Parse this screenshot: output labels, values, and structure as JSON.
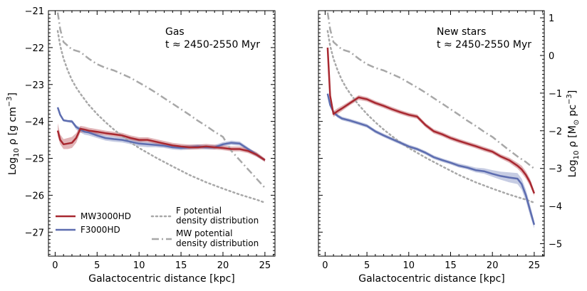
{
  "chart_data": {
    "type": "line",
    "shared_xlabel": "Galactocentric distance [kpc]",
    "left_ylabel": "Log$_{10}$ ρ [g cm$^{-3}$]",
    "right_ylabel": "Log$_{10}$ ρ [M$_\\odot$ pc$^{-3}$]",
    "xlim": [
      -0.8,
      26.2
    ],
    "ylim": [
      -27.65,
      -21
    ],
    "right_ylim": [
      -5.33,
      1.19
    ],
    "xticks": [
      0,
      5,
      10,
      15,
      20,
      25
    ],
    "left_yticks": [
      -27,
      -26,
      -25,
      -24,
      -23,
      -22,
      -21
    ],
    "right_yticks": [
      1,
      0,
      -1,
      -2,
      -3,
      -4,
      -5
    ],
    "xtick_labels": [
      "0",
      "5",
      "10",
      "15",
      "20",
      "25"
    ],
    "left_ytick_labels": [
      "−27",
      "−26",
      "−25",
      "−24",
      "−23",
      "−22",
      "−21"
    ],
    "right_ytick_labels": [
      "1",
      "0",
      "−1",
      "−2",
      "−3",
      "−4",
      "−5"
    ],
    "colors": {
      "MW3000HD": "#a82830",
      "F3000HD": "#5d6db0",
      "F potential": "#a8a8a8",
      "MW potential": "#a8a8a8"
    },
    "legend": {
      "location": "bottom-left of left panel",
      "entries": [
        {
          "label": "MW3000HD",
          "style": "solid",
          "series": "MW3000HD"
        },
        {
          "label": "F3000HD",
          "style": "solid",
          "series": "F3000HD"
        },
        {
          "label_lines": [
            "F potential",
            "density distribution"
          ],
          "style": "dotted",
          "series": "F potential"
        },
        {
          "label_lines": [
            "MW potential",
            "density distribution"
          ],
          "style": "dashdot",
          "series": "MW potential"
        }
      ]
    },
    "panels": [
      {
        "id": "gas",
        "annotation": [
          "Gas",
          "t ≈ 2450-2550 Myr"
        ],
        "series": [
          {
            "name": "MW potential",
            "style": "dashdot",
            "x": [
              0.3,
              0.6,
              1,
              1.5,
              2,
              3,
              4,
              5,
              6,
              7,
              8,
              9,
              10,
              11,
              12,
              13,
              14,
              15,
              16,
              17,
              18,
              19,
              20,
              21,
              22,
              23,
              24,
              25
            ],
            "y": [
              -21.05,
              -21.5,
              -21.85,
              -21.95,
              -22.05,
              -22.12,
              -22.3,
              -22.45,
              -22.55,
              -22.62,
              -22.72,
              -22.82,
              -22.95,
              -23.08,
              -23.22,
              -23.37,
              -23.52,
              -23.67,
              -23.82,
              -23.98,
              -24.12,
              -24.28,
              -24.42,
              -24.8,
              -25.05,
              -25.3,
              -25.55,
              -25.8
            ]
          },
          {
            "name": "F potential",
            "style": "dotted",
            "x": [
              0.3,
              0.6,
              1,
              1.5,
              2,
              2.5,
              3,
              4,
              5,
              6,
              7,
              8,
              9,
              10,
              12,
              14,
              16,
              18,
              20,
              22,
              24,
              25
            ],
            "y": [
              -21.55,
              -21.95,
              -22.3,
              -22.62,
              -22.88,
              -23.08,
              -23.25,
              -23.55,
              -23.8,
              -24.02,
              -24.22,
              -24.4,
              -24.57,
              -24.72,
              -24.98,
              -25.22,
              -25.45,
              -25.65,
              -25.82,
              -25.98,
              -26.12,
              -26.2
            ]
          },
          {
            "name": "F3000HD",
            "style": "solid",
            "x": [
              0.3,
              0.6,
              1,
              1.5,
              2,
              2.5,
              3,
              3.5,
              4,
              5,
              6,
              7,
              8,
              9,
              10,
              11,
              12,
              13,
              14,
              15,
              16,
              17,
              18,
              19,
              20,
              21,
              22,
              23,
              24,
              25
            ],
            "y": [
              -23.62,
              -23.82,
              -23.97,
              -23.99,
              -24.0,
              -24.15,
              -24.22,
              -24.28,
              -24.3,
              -24.38,
              -24.45,
              -24.48,
              -24.5,
              -24.55,
              -24.6,
              -24.62,
              -24.64,
              -24.66,
              -24.7,
              -24.72,
              -24.7,
              -24.68,
              -24.7,
              -24.7,
              -24.62,
              -24.58,
              -24.6,
              -24.75,
              -24.9,
              -25.05
            ],
            "band_lower": [
              -23.62,
              -23.85,
              -24.0,
              -24.02,
              -24.05,
              -24.22,
              -24.3,
              -24.36,
              -24.38,
              -24.45,
              -24.52,
              -24.55,
              -24.57,
              -24.62,
              -24.68,
              -24.7,
              -24.7,
              -24.72,
              -24.76,
              -24.78,
              -24.76,
              -24.74,
              -24.76,
              -24.76,
              -24.68,
              -24.64,
              -24.66,
              -24.8,
              -24.95,
              -25.08
            ],
            "band_upper": [
              -23.62,
              -23.8,
              -23.94,
              -23.96,
              -23.96,
              -24.1,
              -24.16,
              -24.22,
              -24.24,
              -24.31,
              -24.38,
              -24.41,
              -24.43,
              -24.48,
              -24.52,
              -24.55,
              -24.58,
              -24.6,
              -24.64,
              -24.66,
              -24.64,
              -24.62,
              -24.64,
              -24.64,
              -24.56,
              -24.52,
              -24.54,
              -24.7,
              -24.85,
              -25.02
            ]
          },
          {
            "name": "MW3000HD",
            "style": "solid",
            "x": [
              0.3,
              0.6,
              1,
              1.5,
              2,
              2.5,
              3,
              3.5,
              4,
              5,
              6,
              7,
              8,
              9,
              10,
              11,
              12,
              13,
              14,
              15,
              16,
              17,
              18,
              19,
              20,
              21,
              22,
              23,
              24,
              25
            ],
            "y": [
              -24.25,
              -24.5,
              -24.62,
              -24.6,
              -24.58,
              -24.45,
              -24.2,
              -24.22,
              -24.25,
              -24.28,
              -24.32,
              -24.35,
              -24.38,
              -24.45,
              -24.5,
              -24.5,
              -24.55,
              -24.6,
              -24.65,
              -24.68,
              -24.7,
              -24.7,
              -24.68,
              -24.7,
              -24.72,
              -24.75,
              -24.75,
              -24.8,
              -24.9,
              -25.05
            ],
            "band_lower": [
              -24.4,
              -24.62,
              -24.75,
              -24.75,
              -24.72,
              -24.58,
              -24.3,
              -24.3,
              -24.32,
              -24.35,
              -24.38,
              -24.41,
              -24.44,
              -24.51,
              -24.56,
              -24.56,
              -24.61,
              -24.66,
              -24.71,
              -24.74,
              -24.76,
              -24.76,
              -24.74,
              -24.76,
              -24.78,
              -24.81,
              -24.81,
              -24.86,
              -24.96,
              -25.1
            ],
            "band_upper": [
              -24.05,
              -24.35,
              -24.48,
              -24.45,
              -24.42,
              -24.32,
              -24.12,
              -24.14,
              -24.17,
              -24.21,
              -24.25,
              -24.28,
              -24.31,
              -24.38,
              -24.43,
              -24.43,
              -24.48,
              -24.53,
              -24.58,
              -24.61,
              -24.63,
              -24.63,
              -24.61,
              -24.63,
              -24.65,
              -24.68,
              -24.68,
              -24.73,
              -24.83,
              -25.0
            ]
          }
        ]
      },
      {
        "id": "new-stars",
        "annotation": [
          "New stars",
          "t ≈ 2450-2550 Myr"
        ],
        "series": [
          {
            "name": "MW potential",
            "style": "dashdot",
            "x": [
              0.3,
              0.6,
              1,
              1.5,
              2,
              3,
              4,
              5,
              6,
              7,
              8,
              9,
              10,
              11,
              12,
              13,
              14,
              15,
              16,
              17,
              18,
              19,
              20,
              21,
              22,
              23,
              24,
              25
            ],
            "y": [
              -21.05,
              -21.5,
              -21.85,
              -21.95,
              -22.05,
              -22.12,
              -22.3,
              -22.45,
              -22.55,
              -22.62,
              -22.72,
              -22.82,
              -22.95,
              -23.08,
              -23.22,
              -23.37,
              -23.52,
              -23.67,
              -23.82,
              -23.98,
              -24.12,
              -24.28,
              -24.42,
              -24.6,
              -24.78,
              -24.95,
              -25.1,
              -25.28
            ]
          },
          {
            "name": "F potential",
            "style": "dotted",
            "x": [
              0.3,
              0.6,
              1,
              1.5,
              2,
              2.5,
              3,
              4,
              5,
              6,
              7,
              8,
              9,
              10,
              12,
              14,
              16,
              18,
              20,
              22,
              24,
              25
            ],
            "y": [
              -21.55,
              -21.95,
              -22.3,
              -22.62,
              -22.88,
              -23.08,
              -23.25,
              -23.55,
              -23.8,
              -24.02,
              -24.22,
              -24.4,
              -24.57,
              -24.72,
              -24.98,
              -25.22,
              -25.45,
              -25.65,
              -25.82,
              -25.98,
              -26.12,
              -26.2
            ]
          },
          {
            "name": "F3000HD",
            "style": "solid",
            "x": [
              0.3,
              0.6,
              1,
              1.5,
              2,
              3,
              4,
              5,
              6,
              7,
              8,
              9,
              10,
              11,
              12,
              13,
              14,
              15,
              16,
              17,
              18,
              19,
              20,
              21,
              22,
              23,
              23.5,
              24,
              24.5,
              25
            ],
            "y": [
              -23.25,
              -23.55,
              -23.75,
              -23.85,
              -23.92,
              -23.98,
              -24.05,
              -24.12,
              -24.27,
              -24.38,
              -24.48,
              -24.58,
              -24.68,
              -24.75,
              -24.85,
              -24.97,
              -25.05,
              -25.12,
              -25.2,
              -25.25,
              -25.32,
              -25.35,
              -25.42,
              -25.48,
              -25.52,
              -25.55,
              -25.7,
              -26.0,
              -26.4,
              -26.8
            ],
            "band_lower": [
              -23.3,
              -23.6,
              -23.8,
              -23.9,
              -23.97,
              -24.03,
              -24.1,
              -24.17,
              -24.32,
              -24.43,
              -24.53,
              -24.63,
              -24.73,
              -24.8,
              -24.9,
              -25.02,
              -25.1,
              -25.17,
              -25.25,
              -25.3,
              -25.38,
              -25.42,
              -25.5,
              -25.58,
              -25.65,
              -25.7,
              -25.85,
              -26.15,
              -26.55,
              -26.9
            ],
            "band_upper": [
              -23.2,
              -23.5,
              -23.7,
              -23.8,
              -23.87,
              -23.93,
              -24.0,
              -24.07,
              -24.22,
              -24.33,
              -24.43,
              -24.53,
              -24.63,
              -24.7,
              -24.8,
              -24.92,
              -25.0,
              -25.07,
              -25.14,
              -25.19,
              -25.25,
              -25.27,
              -25.32,
              -25.36,
              -25.38,
              -25.4,
              -25.55,
              -25.85,
              -26.25,
              -26.7
            ]
          },
          {
            "name": "MW3000HD",
            "style": "solid",
            "x": [
              0.3,
              0.6,
              1,
              1.5,
              2,
              3,
              4,
              5,
              6,
              7,
              8,
              9,
              10,
              11,
              12,
              13,
              14,
              15,
              16,
              17,
              18,
              19,
              20,
              21,
              22,
              23,
              23.5,
              24,
              24.5,
              25
            ],
            "y": [
              -22.0,
              -23.3,
              -23.8,
              -23.72,
              -23.65,
              -23.5,
              -23.35,
              -23.4,
              -23.5,
              -23.58,
              -23.67,
              -23.75,
              -23.82,
              -23.87,
              -24.1,
              -24.27,
              -24.35,
              -24.45,
              -24.53,
              -24.6,
              -24.67,
              -24.75,
              -24.82,
              -24.95,
              -25.05,
              -25.2,
              -25.3,
              -25.45,
              -25.65,
              -25.95
            ],
            "band_lower": [
              -22.1,
              -23.4,
              -23.88,
              -23.8,
              -23.72,
              -23.56,
              -23.42,
              -23.46,
              -23.56,
              -23.64,
              -23.73,
              -23.81,
              -23.88,
              -23.93,
              -24.16,
              -24.33,
              -24.41,
              -24.51,
              -24.59,
              -24.66,
              -24.73,
              -24.81,
              -24.88,
              -25.01,
              -25.12,
              -25.28,
              -25.4,
              -25.55,
              -25.75,
              -26.02
            ],
            "band_upper": [
              -21.9,
              -23.2,
              -23.72,
              -23.64,
              -23.58,
              -23.44,
              -23.29,
              -23.34,
              -23.44,
              -23.52,
              -23.61,
              -23.69,
              -23.76,
              -23.81,
              -24.04,
              -24.21,
              -24.29,
              -24.39,
              -24.47,
              -24.54,
              -24.61,
              -24.69,
              -24.76,
              -24.89,
              -24.98,
              -25.12,
              -25.2,
              -25.35,
              -25.55,
              -25.88
            ]
          }
        ]
      }
    ]
  }
}
